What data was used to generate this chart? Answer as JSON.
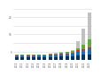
{
  "years": [
    2010,
    2011,
    2012,
    2013,
    2014,
    2015,
    2016,
    2017,
    2018,
    2019,
    2020,
    2021,
    2022,
    2023
  ],
  "series": {
    "dark_blue": [
      1.5,
      1.6,
      1.5,
      1.5,
      1.6,
      1.6,
      1.7,
      1.8,
      2.0,
      2.1,
      2.3,
      2.8,
      3.2,
      3.5
    ],
    "blue": [
      0.8,
      0.9,
      0.8,
      0.9,
      0.9,
      1.0,
      1.0,
      1.1,
      1.3,
      1.4,
      1.6,
      2.0,
      2.3,
      2.8
    ],
    "red": [
      0.3,
      0.3,
      0.3,
      0.3,
      0.3,
      0.3,
      0.4,
      0.4,
      0.5,
      0.5,
      0.6,
      0.8,
      1.0,
      1.2
    ],
    "green": [
      0.4,
      0.4,
      0.4,
      0.4,
      0.4,
      0.4,
      0.5,
      0.5,
      0.6,
      0.7,
      1.0,
      1.5,
      2.5,
      4.5
    ],
    "light_gray": [
      0.1,
      0.1,
      0.1,
      0.1,
      0.1,
      0.1,
      0.1,
      0.2,
      0.2,
      0.3,
      0.5,
      4.0,
      9.0,
      15.0
    ],
    "light_blue": [
      0.05,
      0.05,
      0.05,
      0.05,
      0.05,
      0.05,
      0.05,
      0.05,
      0.05,
      0.05,
      0.1,
      0.2,
      0.3,
      0.5
    ]
  },
  "colors": [
    "#003366",
    "#1f6db5",
    "#c0392b",
    "#5dab3e",
    "#c0c0c0",
    "#aec9e8"
  ],
  "ylim": [
    0,
    30
  ],
  "ytick_labels": [
    "",
    "5",
    "",
    "15",
    "",
    "25",
    ""
  ],
  "ytick_vals": [
    0,
    5,
    10,
    15,
    20,
    25,
    30
  ],
  "background_color": "#ffffff",
  "grid_color": "#d9d9d9",
  "bar_width": 0.65
}
